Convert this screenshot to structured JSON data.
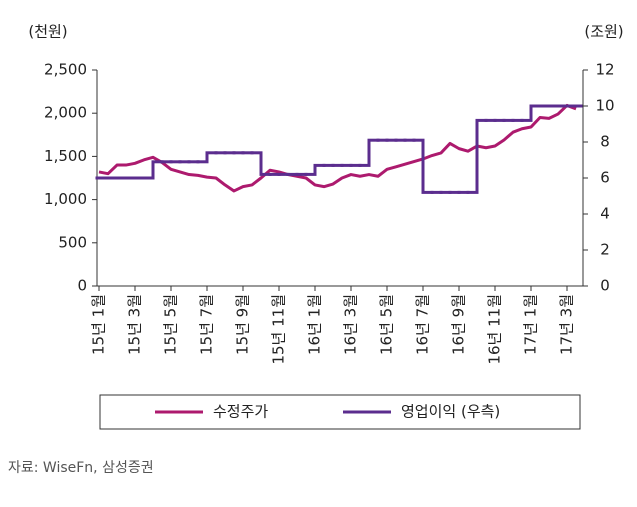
{
  "chart_data": {
    "type": "line",
    "y_label": "(천원)",
    "y2_label": "(조원)",
    "source": "자료: WiseFn, 삼성증권",
    "categories": [
      "15년 1월",
      null,
      null,
      null,
      "15년 3월",
      null,
      null,
      null,
      "15년 5월",
      null,
      null,
      null,
      "15년 7월",
      null,
      null,
      null,
      "15년 9월",
      null,
      null,
      null,
      "15년 11월",
      null,
      null,
      null,
      "16년 1월",
      null,
      null,
      null,
      "16년 3월",
      null,
      null,
      null,
      "16년 5월",
      null,
      null,
      null,
      "16년 7월",
      null,
      null,
      null,
      "16년 9월",
      null,
      null,
      null,
      "16년 11월",
      null,
      null,
      null,
      "17년 1월",
      null,
      null,
      null,
      "17년 3월",
      null
    ],
    "series": [
      {
        "name": "수정주가",
        "color": "#ad1a6e",
        "style": "line",
        "values": [
          1320,
          1300,
          1400,
          1400,
          1420,
          1460,
          1490,
          1430,
          1350,
          1320,
          1290,
          1280,
          1260,
          1250,
          1170,
          1100,
          1150,
          1170,
          1250,
          1340,
          1320,
          1290,
          1270,
          1250,
          1170,
          1150,
          1180,
          1250,
          1290,
          1270,
          1290,
          1270,
          1350,
          1380,
          1410,
          1440,
          1470,
          1510,
          1540,
          1650,
          1590,
          1560,
          1620,
          1600,
          1620,
          1690,
          1780,
          1820,
          1840,
          1950,
          1940,
          1990,
          2090,
          2050
        ]
      },
      {
        "name": "영업이익 (우측)",
        "color": "#5b2d8e",
        "style": "step",
        "axis": "y2",
        "values": [
          6.0,
          6.0,
          6.0,
          6.0,
          6.0,
          6.0,
          6.9,
          6.9,
          6.9,
          6.9,
          6.9,
          6.9,
          7.4,
          7.4,
          7.4,
          7.4,
          7.4,
          7.4,
          6.2,
          6.2,
          6.2,
          6.2,
          6.2,
          6.2,
          6.7,
          6.7,
          6.7,
          6.7,
          6.7,
          6.7,
          8.1,
          8.1,
          8.1,
          8.1,
          8.1,
          8.1,
          5.2,
          5.2,
          5.2,
          5.2,
          5.2,
          5.2,
          9.2,
          9.2,
          9.2,
          9.2,
          9.2,
          9.2,
          10.0,
          10.0,
          10.0,
          10.0,
          10.0,
          10.0
        ]
      }
    ],
    "ylim": [
      0,
      2500
    ],
    "yticks": [
      0,
      500,
      {
        "value": 1000,
        "label": "1,000"
      },
      {
        "value": 1500,
        "label": "1,500"
      },
      {
        "value": 2000,
        "label": "2,000"
      },
      {
        "value": 2500,
        "label": "2,500"
      }
    ],
    "y2lim": [
      0,
      12
    ],
    "y2ticks": [
      0,
      2,
      4,
      6,
      8,
      10,
      12
    ],
    "grid": false
  }
}
